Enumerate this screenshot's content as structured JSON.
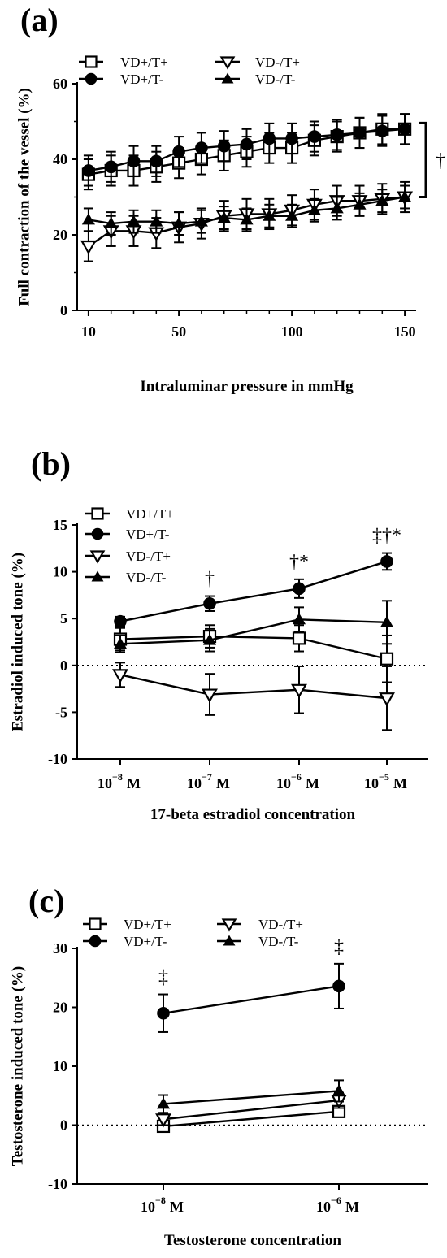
{
  "chart_data": [
    {
      "type": "line",
      "panel_label": "(a)",
      "xlabel": "Intraluminar pressure in mmHg",
      "ylabel": "Full contraction of the vessel (%)",
      "xlim": [
        5,
        155
      ],
      "ylim": [
        0,
        60
      ],
      "x_ticks": [
        10,
        50,
        100,
        150
      ],
      "y_ticks": [
        0,
        20,
        40,
        60
      ],
      "x": [
        10,
        20,
        30,
        40,
        50,
        60,
        70,
        80,
        90,
        100,
        110,
        120,
        130,
        140,
        150
      ],
      "series": [
        {
          "name": "VD+/T+",
          "marker": "open-square",
          "values": [
            36,
            37,
            37,
            38,
            39,
            40,
            41,
            42,
            43,
            43,
            45,
            46,
            47,
            48,
            48
          ],
          "errors": [
            4,
            4,
            4,
            4,
            4,
            4,
            4,
            4,
            4,
            4,
            4,
            4,
            4,
            4,
            4
          ]
        },
        {
          "name": "VD+/T-",
          "marker": "filled-circle",
          "values": [
            37,
            38,
            39.5,
            39.5,
            42,
            43,
            43.5,
            44,
            45.5,
            45.5,
            46,
            46.5,
            47,
            47.5,
            48
          ],
          "errors": [
            4,
            4,
            4,
            4,
            4,
            4,
            4,
            4,
            4,
            4,
            4,
            4,
            4,
            4,
            4
          ]
        },
        {
          "name": "VD-/T+",
          "marker": "open-triangle-down",
          "values": [
            17,
            21,
            21,
            20.5,
            22,
            23,
            25,
            25.5,
            25.5,
            26.5,
            28,
            29,
            29,
            29.5,
            30
          ],
          "errors": [
            4,
            4,
            4,
            4,
            4,
            4,
            4,
            4,
            4,
            4,
            4,
            4,
            4,
            4,
            4
          ]
        },
        {
          "name": "VD-/T-",
          "marker": "filled-triangle-up",
          "values": [
            24,
            23,
            23.5,
            23.5,
            23,
            23.5,
            24.5,
            24,
            25,
            25,
            26.5,
            27,
            28,
            29,
            30
          ],
          "errors": [
            3,
            3,
            3,
            3,
            3,
            3,
            3,
            3,
            3,
            3,
            3,
            3,
            3,
            3,
            3
          ]
        }
      ],
      "annotations": [
        {
          "text": "†"
        }
      ],
      "zero_line": false
    },
    {
      "type": "line",
      "panel_label": "(b)",
      "xlabel": "17-beta estradiol concentration",
      "ylabel": "Estradiol induced tone (%)",
      "ylim": [
        -10,
        15
      ],
      "y_ticks": [
        -10,
        -5,
        0,
        5,
        10,
        15
      ],
      "categories": [
        "10",
        "10",
        "10",
        "10"
      ],
      "category_exponents": [
        "−8",
        "−7",
        "−6",
        "−5"
      ],
      "category_unit": "M",
      "series": [
        {
          "name": "VD+/T+",
          "marker": "open-square",
          "values": [
            2.8,
            3.1,
            2.9,
            0.7
          ],
          "errors": [
            1.2,
            1.2,
            1.4,
            2.5
          ]
        },
        {
          "name": "VD+/T-",
          "marker": "filled-circle",
          "values": [
            4.7,
            6.6,
            8.2,
            11.1
          ],
          "errors": [
            0.5,
            0.8,
            1.0,
            0.9
          ]
        },
        {
          "name": "VD-/T+",
          "marker": "open-triangle-down",
          "values": [
            -1.0,
            -3.1,
            -2.6,
            -3.5
          ],
          "errors": [
            1.3,
            2.2,
            2.5,
            3.4
          ]
        },
        {
          "name": "VD-/T-",
          "marker": "filled-triangle-up",
          "values": [
            2.3,
            2.7,
            4.9,
            4.6
          ],
          "errors": [
            0.9,
            1.2,
            1.3,
            2.3
          ]
        }
      ],
      "annotations": [
        {
          "category_index": 1,
          "text": "†"
        },
        {
          "category_index": 2,
          "text": "†*"
        },
        {
          "category_index": 3,
          "text": "‡†*"
        }
      ],
      "zero_line": true
    },
    {
      "type": "line",
      "panel_label": "(c)",
      "xlabel": "Testosterone concentration",
      "ylabel": "Testosterone induced tone (%)",
      "ylim": [
        -10,
        30
      ],
      "y_ticks": [
        -10,
        0,
        10,
        20,
        30
      ],
      "categories": [
        "10",
        "10"
      ],
      "category_exponents": [
        "−8",
        "−6"
      ],
      "category_unit": "M",
      "series": [
        {
          "name": "VD+/T+",
          "marker": "open-square",
          "values": [
            -0.2,
            2.3
          ],
          "errors": [
            0.4,
            0.6
          ]
        },
        {
          "name": "VD+/T-",
          "marker": "filled-circle",
          "values": [
            19.0,
            23.6
          ],
          "errors": [
            3.2,
            3.8
          ]
        },
        {
          "name": "VD-/T+",
          "marker": "open-triangle-down",
          "values": [
            1.0,
            4.2
          ],
          "errors": [
            1.0,
            1.3
          ]
        },
        {
          "name": "VD-/T-",
          "marker": "filled-triangle-up",
          "values": [
            3.6,
            5.8
          ],
          "errors": [
            1.5,
            1.8
          ]
        }
      ],
      "annotations": [
        {
          "category_index": 0,
          "text": "‡"
        },
        {
          "category_index": 1,
          "text": "‡"
        }
      ],
      "zero_line": true
    }
  ]
}
